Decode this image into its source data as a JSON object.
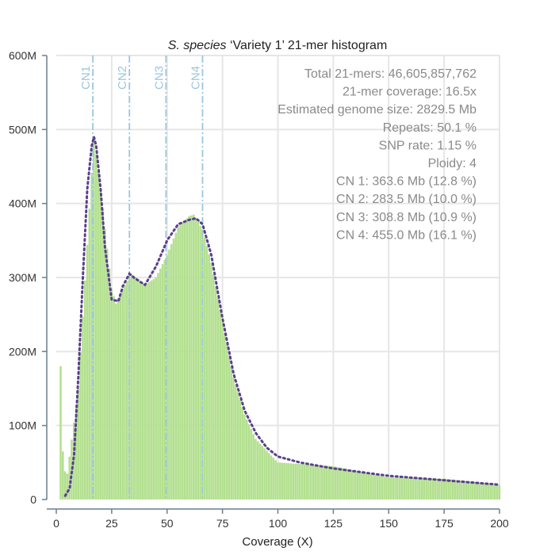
{
  "chart_data": {
    "type": "bar",
    "title": {
      "species": "S. species",
      "rest": " ‘Variety 1’ 21-mer histogram"
    },
    "xlabel": "Coverage (X)",
    "ylabel": "",
    "xlim": [
      0,
      200
    ],
    "ylim": [
      0,
      600000000
    ],
    "x_ticks": [
      0,
      25,
      50,
      75,
      100,
      125,
      150,
      175,
      200
    ],
    "x_tick_labels": [
      "0",
      "25",
      "50",
      "75",
      "100",
      "125",
      "150",
      "175",
      "200"
    ],
    "y_ticks": [
      0,
      100000000,
      200000000,
      300000000,
      400000000,
      500000000,
      600000000
    ],
    "y_tick_labels": [
      "0",
      "100M",
      "200M",
      "300M",
      "400M",
      "500M",
      "600M"
    ],
    "grid": true,
    "histogram": {
      "x": [
        2,
        5,
        10,
        17,
        20,
        25,
        27,
        30,
        34,
        40,
        45,
        50,
        55,
        60,
        62,
        66,
        70,
        75,
        80,
        85,
        90,
        100,
        125,
        150,
        175,
        200
      ],
      "y": [
        180000000,
        35000000,
        150000000,
        490000000,
        420000000,
        285000000,
        265000000,
        285000000,
        305000000,
        290000000,
        300000000,
        330000000,
        368000000,
        383000000,
        385000000,
        365000000,
        320000000,
        240000000,
        165000000,
        115000000,
        82000000,
        50000000,
        45000000,
        30000000,
        28000000,
        20000000
      ],
      "color": "#b3e08f"
    },
    "model_fit": {
      "x": [
        4,
        6,
        8,
        10,
        12,
        14,
        16,
        17,
        18,
        20,
        22,
        25,
        28,
        30,
        33,
        35,
        40,
        45,
        50,
        55,
        60,
        63,
        66,
        70,
        75,
        80,
        85,
        90,
        95,
        100,
        110,
        125,
        150,
        175,
        200
      ],
      "y": [
        5000000,
        15000000,
        60000000,
        170000000,
        300000000,
        420000000,
        478000000,
        490000000,
        478000000,
        420000000,
        340000000,
        270000000,
        268000000,
        288000000,
        305000000,
        300000000,
        290000000,
        315000000,
        350000000,
        372000000,
        378000000,
        380000000,
        372000000,
        330000000,
        245000000,
        170000000,
        120000000,
        90000000,
        70000000,
        58000000,
        50000000,
        42000000,
        32000000,
        26000000,
        20000000
      ],
      "color": "#5b3f8c"
    },
    "cn_lines": [
      {
        "label": "CN1",
        "x": 16.5
      },
      {
        "label": "CN2",
        "x": 33
      },
      {
        "label": "CN3",
        "x": 49.5
      },
      {
        "label": "CN4",
        "x": 66
      }
    ],
    "cn_line_color": "#9cc6e0",
    "annotations": [
      "Total 21-mers: 46,605,857,762",
      "21-mer coverage: 16.5x",
      "Estimated genome size: 2829.5 Mb",
      "Repeats: 50.1 %",
      "SNP rate: 1.15 %",
      "Ploidy: 4",
      "CN 1: 363.6 Mb (12.8 %)",
      "CN 2: 283.5 Mb (10.0 %)",
      "CN 3: 308.8 Mb (10.9 %)",
      "CN 4: 455.0 Mb (16.1 %)"
    ],
    "axis_color": "#6a7f8c",
    "grid_color": "#e6e6e6"
  }
}
